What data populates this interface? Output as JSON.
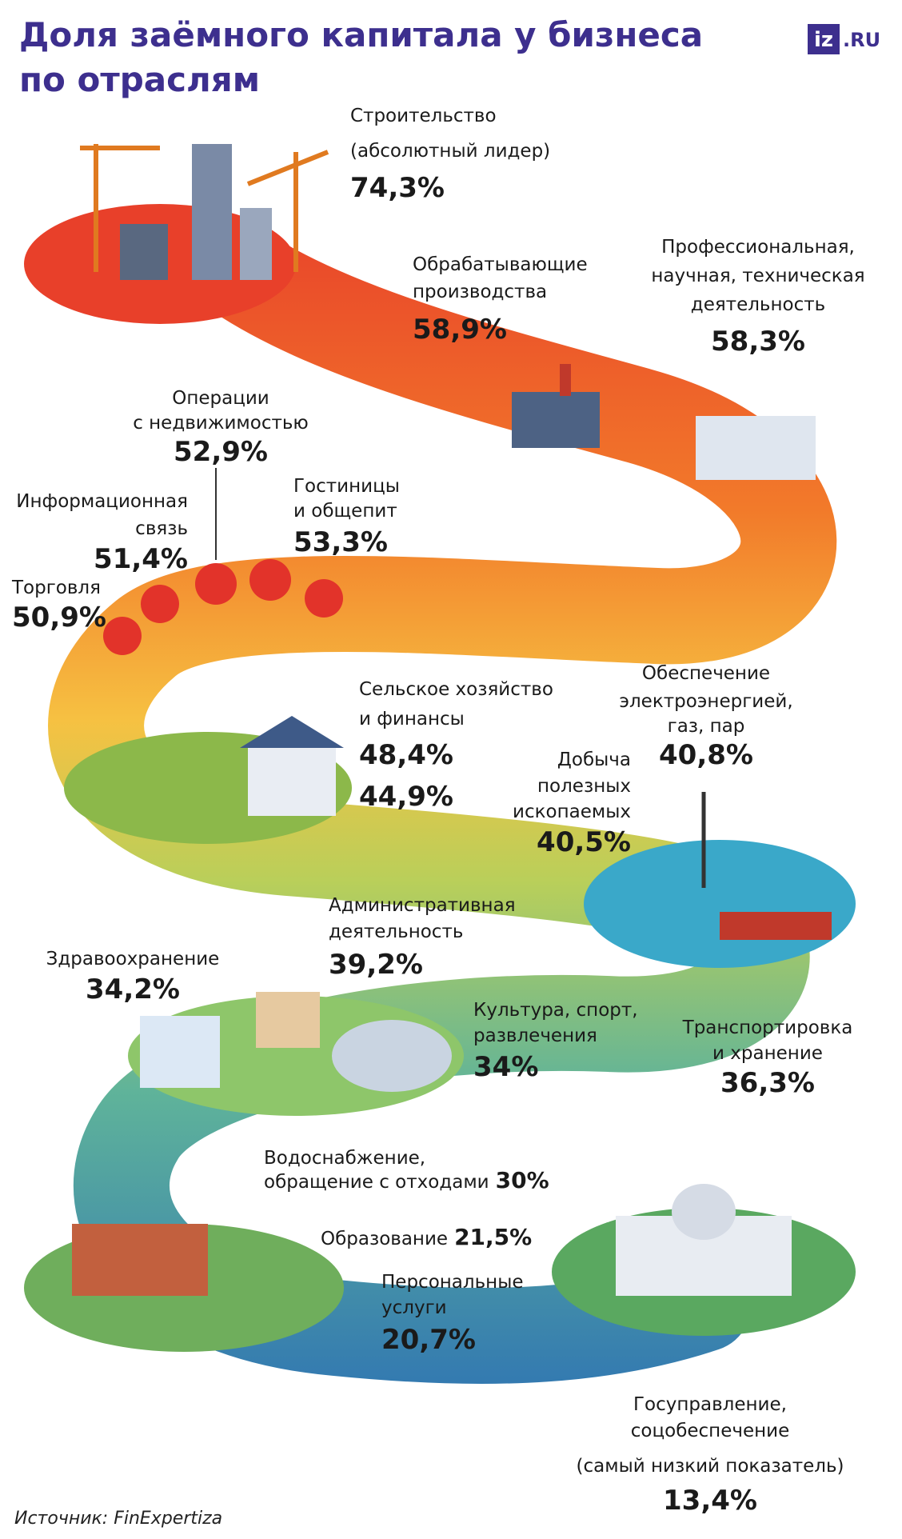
{
  "header": {
    "title_lines": [
      "Доля заёмного капитала у бизнеса",
      "по отраслям"
    ],
    "logo": "iz",
    "logo_suffix": ".RU"
  },
  "items": [
    {
      "lines": [
        "Строительство",
        "(абсолютный лидер)"
      ],
      "value": "74,3%"
    },
    {
      "lines": [
        "Обрабатывающие",
        "производства"
      ],
      "value": "58,9%"
    },
    {
      "lines": [
        "Профессиональная,",
        "научная, техническая",
        "деятельность"
      ],
      "value": "58,3%"
    },
    {
      "lines": [
        "Операции",
        "с недвижимостью"
      ],
      "value": "52,9%"
    },
    {
      "lines": [
        "Гостиницы",
        "и общепит"
      ],
      "value": "53,3%"
    },
    {
      "lines": [
        "Информационная",
        "связь"
      ],
      "value": "51,4%"
    },
    {
      "lines": [
        "Торговля"
      ],
      "value": "50,9%"
    },
    {
      "lines": [
        "Сельское хозяйство",
        "и финансы"
      ],
      "values": [
        "48,4%",
        "44,9%"
      ]
    },
    {
      "lines": [
        "Обеспечение",
        "электроэнергией,",
        "газ, пар"
      ],
      "value": "40,8%"
    },
    {
      "lines": [
        "Добыча",
        "полезных",
        "ископаемых"
      ],
      "value": "40,5%"
    },
    {
      "lines": [
        "Административная",
        "деятельность"
      ],
      "value": "39,2%"
    },
    {
      "lines": [
        "Здравоохранение"
      ],
      "value": "34,2%"
    },
    {
      "lines": [
        "Культура, спорт,",
        "развлечения"
      ],
      "value": "34%"
    },
    {
      "lines": [
        "Транспортировка",
        "и хранение"
      ],
      "value": "36,3%"
    },
    {
      "lines": [
        "Водоснабжение,",
        "обращение с отходами"
      ],
      "value": "30%"
    },
    {
      "lines": [
        "Образование"
      ],
      "value": "21,5%"
    },
    {
      "lines": [
        "Персональные",
        "услуги"
      ],
      "value": "20,7%"
    },
    {
      "lines": [
        "Госуправление,",
        "соцобеспечение",
        "(самый низкий показатель)"
      ],
      "value": "13,4%"
    }
  ],
  "footer": {
    "source": "Источник: FinExpertiza"
  }
}
